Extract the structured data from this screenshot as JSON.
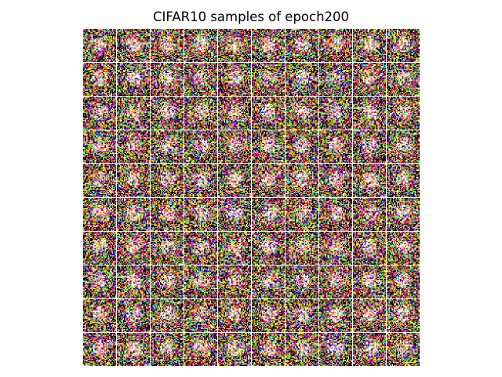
{
  "figure": {
    "title": "CIFAR10 samples of epoch200"
  },
  "grid": {
    "rows": 10,
    "cols": 10,
    "image_resolution": 32,
    "palette": [
      "#000000",
      "#ff0000",
      "#00ff00",
      "#0000ff",
      "#ffff00",
      "#ff00ff",
      "#00ffff",
      "#ffffff",
      "#ff8000",
      "#80ff00",
      "#8000ff",
      "#ff0080",
      "#ffa0a0",
      "#e0e020",
      "#40c040",
      "#ff6040"
    ],
    "background": "#ffffff"
  }
}
